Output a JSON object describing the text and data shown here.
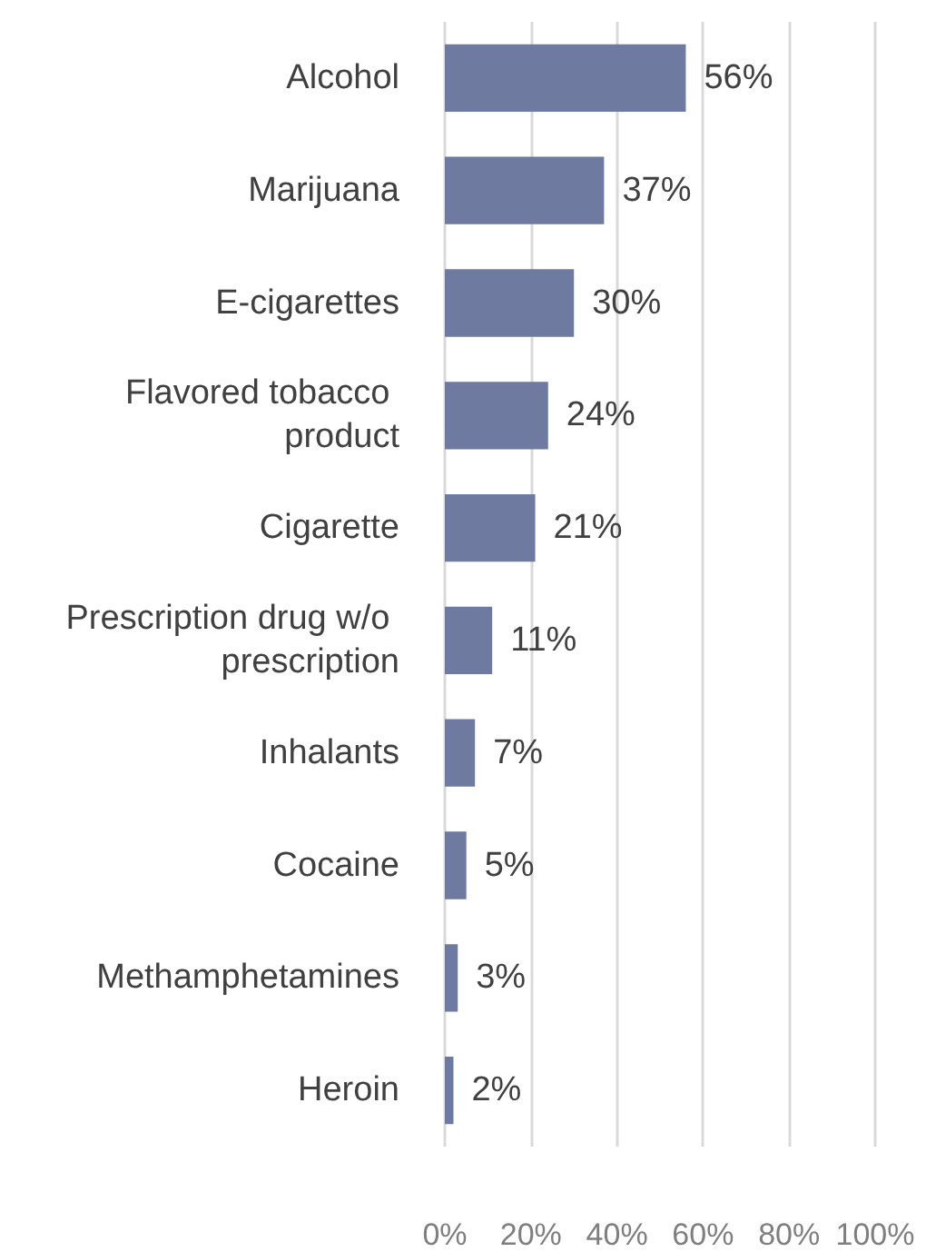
{
  "chart_data": {
    "type": "bar",
    "orientation": "horizontal",
    "categories": [
      "Alcohol",
      "Marijuana",
      "E-cigarettes",
      "Flavored tobacco product",
      "Cigarette",
      "Prescription drug w/o prescription",
      "Inhalants",
      "Cocaine",
      "Methamphetamines",
      "Heroin"
    ],
    "values": [
      56,
      37,
      30,
      24,
      21,
      11,
      7,
      5,
      3,
      2
    ],
    "value_labels": [
      "56%",
      "37%",
      "30%",
      "24%",
      "21%",
      "11%",
      "7%",
      "5%",
      "3%",
      "2%"
    ],
    "color": "#6f7aa1",
    "xlim": [
      0,
      100
    ],
    "xticks": [
      {
        "value": 0,
        "label": "0%"
      },
      {
        "value": 20,
        "label": "20%"
      },
      {
        "value": 40,
        "label": "40%"
      },
      {
        "value": 60,
        "label": "60%"
      },
      {
        "value": 80,
        "label": "80%"
      },
      {
        "value": 100,
        "label": "100%"
      }
    ],
    "grid": "x"
  }
}
